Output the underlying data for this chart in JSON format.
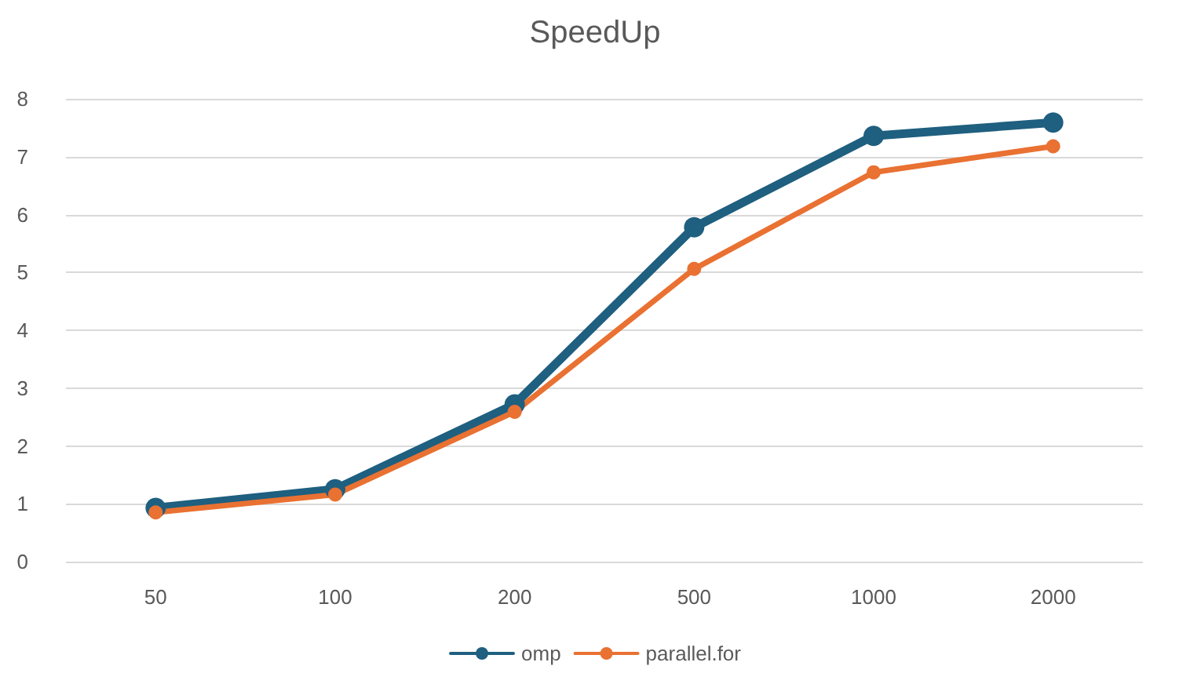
{
  "chart_data": {
    "type": "line",
    "title": "SpeedUp",
    "categories": [
      "50",
      "100",
      "200",
      "500",
      "1000",
      "2000"
    ],
    "series": [
      {
        "name": "omp",
        "color": "#1f5f7f",
        "values": [
          0.93,
          1.25,
          2.72,
          5.78,
          7.36,
          7.59
        ]
      },
      {
        "name": "parallel.for",
        "color": "#e97132",
        "values": [
          0.85,
          1.16,
          2.59,
          5.06,
          6.73,
          7.18
        ]
      }
    ],
    "ylim": [
      0,
      8
    ],
    "yticks": [
      0,
      1,
      2,
      3,
      4,
      5,
      6,
      7,
      8
    ],
    "grid": "y",
    "legend": "bottom",
    "marker": "circle",
    "line_style": "solid"
  }
}
